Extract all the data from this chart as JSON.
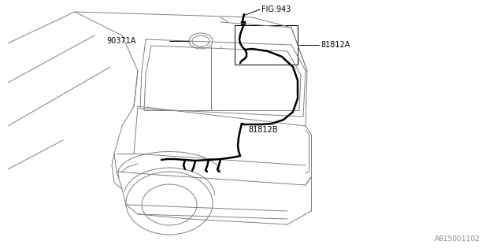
{
  "background_color": "#ffffff",
  "line_color": "#808080",
  "wire_color": "#000000",
  "labels": {
    "fig943": "FIG.943",
    "part90371A": "90371A",
    "part81812A": "81812A",
    "part81812B": "81812B",
    "diagram_id": "A815001102"
  },
  "label_fontsize": 7,
  "diagram_id_fontsize": 6.5
}
